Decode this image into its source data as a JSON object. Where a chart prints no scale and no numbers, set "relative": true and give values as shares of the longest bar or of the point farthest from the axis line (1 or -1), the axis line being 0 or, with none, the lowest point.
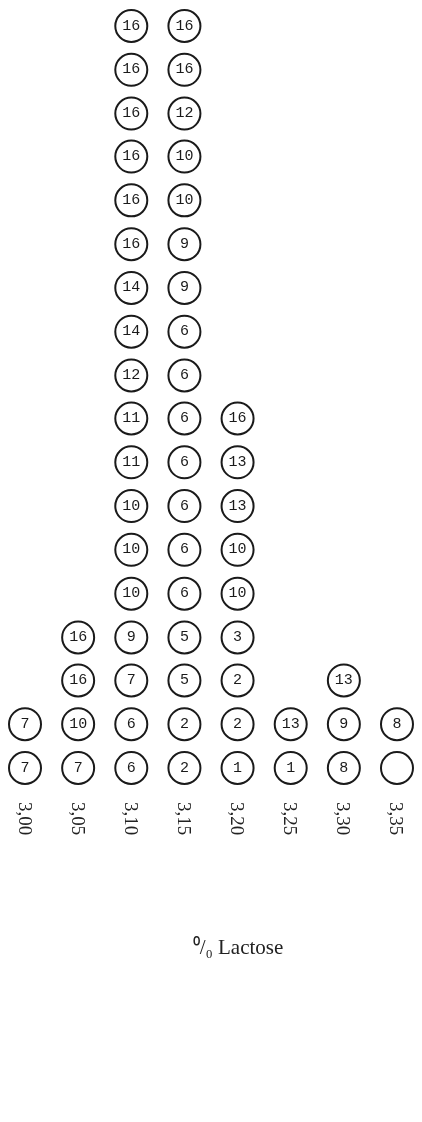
{
  "chart_data": {
    "type": "scatter",
    "xlabel": "⁰/₀ Lactose",
    "categories": [
      "3,00",
      "3,05",
      "3,10",
      "3,15",
      "3,20",
      "3,25",
      "3,30",
      "3,35"
    ],
    "series": [
      {
        "color": "#1a1a1a",
        "x": [
          "3,00",
          "3,00",
          "3,05",
          "3,05",
          "3,05",
          "3,05",
          "3,10",
          "3,10",
          "3,10",
          "3,10",
          "3,10",
          "3,10",
          "3,10",
          "3,10",
          "3,10",
          "3,10",
          "3,10",
          "3,10",
          "3,10",
          "3,10",
          "3,10",
          "3,10",
          "3,10",
          "3,10",
          "3,15",
          "3,15",
          "3,15",
          "3,15",
          "3,15",
          "3,15",
          "3,15",
          "3,15",
          "3,15",
          "3,15",
          "3,15",
          "3,15",
          "3,15",
          "3,15",
          "3,15",
          "3,15",
          "3,15",
          "3,15",
          "3,20",
          "3,20",
          "3,20",
          "3,20",
          "3,20",
          "3,20",
          "3,20",
          "3,20",
          "3,20",
          "3,25",
          "3,25",
          "3,30",
          "3,30",
          "3,30",
          "3,35",
          "3,35"
        ],
        "values": [
          0,
          0.059,
          0,
          0.059,
          0.118,
          0.176,
          0,
          0.059,
          0.118,
          0.176,
          0.235,
          0.294,
          0.353,
          0.412,
          0.471,
          0.529,
          0.588,
          0.647,
          0.706,
          0.765,
          0.824,
          0.882,
          0.941,
          1,
          0,
          0.059,
          0.118,
          0.176,
          0.235,
          0.294,
          0.353,
          0.412,
          0.471,
          0.529,
          0.588,
          0.647,
          0.706,
          0.765,
          0.824,
          0.882,
          0.941,
          1,
          0,
          0.059,
          0.118,
          0.176,
          0.235,
          0.294,
          0.353,
          0.412,
          0.471,
          0,
          0.059,
          0,
          0.059,
          0.118,
          0,
          0.059
        ]
      }
    ],
    "annotations": [
      {
        "text": "7",
        "x": "3,00",
        "y": 0
      },
      {
        "text": "7",
        "x": "3,00",
        "y": 0.059
      },
      {
        "text": "7",
        "x": "3,05",
        "y": 0
      },
      {
        "text": "10",
        "x": "3,05",
        "y": 0.059
      },
      {
        "text": "16",
        "x": "3,05",
        "y": 0.118
      },
      {
        "text": "16",
        "x": "3,05",
        "y": 0.176
      },
      {
        "text": "6",
        "x": "3,10",
        "y": 0
      },
      {
        "text": "6",
        "x": "3,10",
        "y": 0.059
      },
      {
        "text": "7",
        "x": "3,10",
        "y": 0.118
      },
      {
        "text": "9",
        "x": "3,10",
        "y": 0.176
      },
      {
        "text": "10",
        "x": "3,10",
        "y": 0.235
      },
      {
        "text": "10",
        "x": "3,10",
        "y": 0.294
      },
      {
        "text": "10",
        "x": "3,10",
        "y": 0.353
      },
      {
        "text": "11",
        "x": "3,10",
        "y": 0.412
      },
      {
        "text": "11",
        "x": "3,10",
        "y": 0.471
      },
      {
        "text": "12",
        "x": "3,10",
        "y": 0.529
      },
      {
        "text": "14",
        "x": "3,10",
        "y": 0.588
      },
      {
        "text": "14",
        "x": "3,10",
        "y": 0.647
      },
      {
        "text": "16",
        "x": "3,10",
        "y": 0.706
      },
      {
        "text": "16",
        "x": "3,10",
        "y": 0.765
      },
      {
        "text": "16",
        "x": "3,10",
        "y": 0.824
      },
      {
        "text": "16",
        "x": "3,10",
        "y": 0.882
      },
      {
        "text": "16",
        "x": "3,10",
        "y": 0.941
      },
      {
        "text": "16",
        "x": "3,10",
        "y": 1
      },
      {
        "text": "2",
        "x": "3,15",
        "y": 0
      },
      {
        "text": "2",
        "x": "3,15",
        "y": 0.059
      },
      {
        "text": "5",
        "x": "3,15",
        "y": 0.118
      },
      {
        "text": "5",
        "x": "3,15",
        "y": 0.176
      },
      {
        "text": "6",
        "x": "3,15",
        "y": 0.235
      },
      {
        "text": "6",
        "x": "3,15",
        "y": 0.294
      },
      {
        "text": "6",
        "x": "3,15",
        "y": 0.353
      },
      {
        "text": "6",
        "x": "3,15",
        "y": 0.412
      },
      {
        "text": "6",
        "x": "3,15",
        "y": 0.471
      },
      {
        "text": "6",
        "x": "3,15",
        "y": 0.529
      },
      {
        "text": "6",
        "x": "3,15",
        "y": 0.588
      },
      {
        "text": "9",
        "x": "3,15",
        "y": 0.647
      },
      {
        "text": "9",
        "x": "3,15",
        "y": 0.706
      },
      {
        "text": "10",
        "x": "3,15",
        "y": 0.765
      },
      {
        "text": "10",
        "x": "3,15",
        "y": 0.824
      },
      {
        "text": "12",
        "x": "3,15",
        "y": 0.882
      },
      {
        "text": "16",
        "x": "3,15",
        "y": 0.941
      },
      {
        "text": "16",
        "x": "3,15",
        "y": 1
      },
      {
        "text": "1",
        "x": "3,20",
        "y": 0
      },
      {
        "text": "2",
        "x": "3,20",
        "y": 0.059
      },
      {
        "text": "2",
        "x": "3,20",
        "y": 0.118
      },
      {
        "text": "3",
        "x": "3,20",
        "y": 0.176
      },
      {
        "text": "10",
        "x": "3,20",
        "y": 0.235
      },
      {
        "text": "10",
        "x": "3,20",
        "y": 0.294
      },
      {
        "text": "13",
        "x": "3,20",
        "y": 0.353
      },
      {
        "text": "13",
        "x": "3,20",
        "y": 0.412
      },
      {
        "text": "16",
        "x": "3,20",
        "y": 0.471
      },
      {
        "text": "1",
        "x": "3,25",
        "y": 0
      },
      {
        "text": "13",
        "x": "3,25",
        "y": 0.059
      },
      {
        "text": "8",
        "x": "3,30",
        "y": 0
      },
      {
        "text": "9",
        "x": "3,30",
        "y": 0.059
      },
      {
        "text": "13",
        "x": "3,30",
        "y": 0.118
      },
      {
        "text": "8",
        "x": "3,35",
        "y": 0.059
      }
    ],
    "relative": true,
    "tick_labels": "x",
    "marker": "circle",
    "grid": false
  }
}
